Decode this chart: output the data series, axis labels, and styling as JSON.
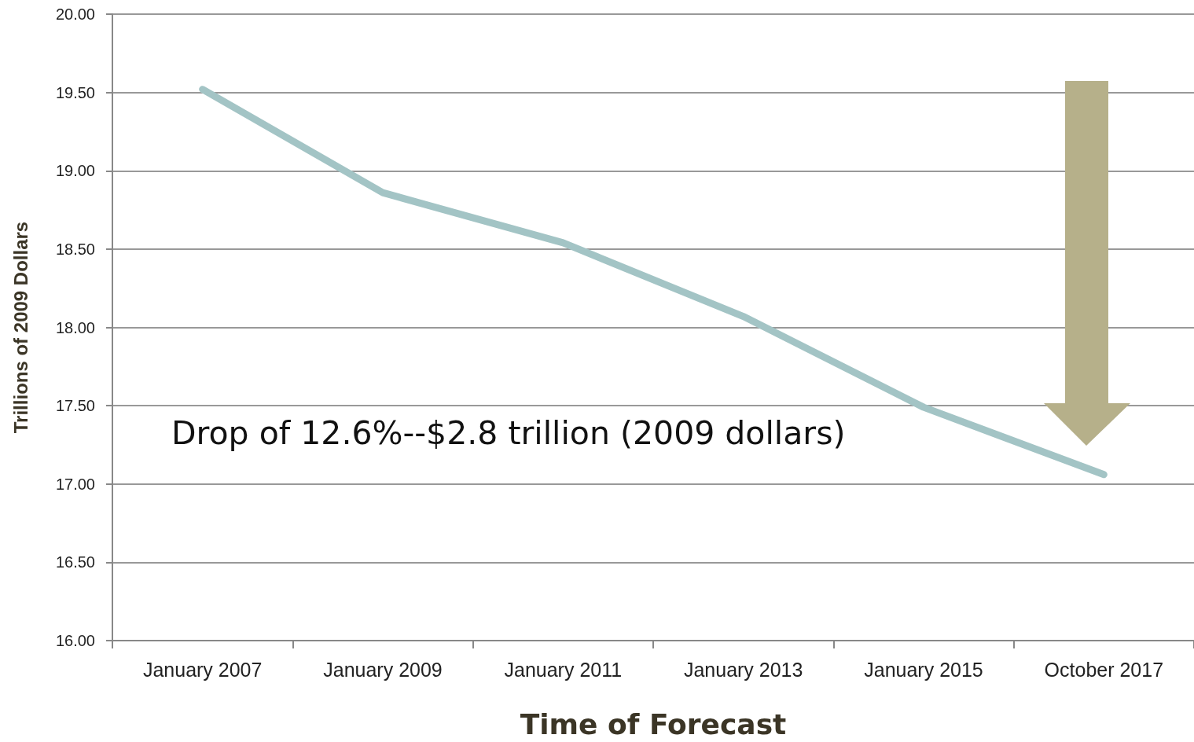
{
  "chart_data": {
    "type": "line",
    "xlabel": "Time of Forecast",
    "ylabel": "Trillions of 2009 Dollars",
    "categories": [
      "January 2007",
      "January 2009",
      "January 2011",
      "January 2013",
      "January 2015",
      "October 2017"
    ],
    "series": [
      {
        "color": "#a3c4c5",
        "values": [
          19.52,
          18.86,
          18.54,
          18.07,
          17.49,
          17.06
        ]
      }
    ],
    "ylim": [
      16,
      20
    ],
    "yticks": [
      {
        "value": 16,
        "label": "16.00"
      },
      {
        "value": 16.5,
        "label": "16.50"
      },
      {
        "value": 17,
        "label": "17.00"
      },
      {
        "value": 17.5,
        "label": "17.50"
      },
      {
        "value": 18,
        "label": "18.00"
      },
      {
        "value": 18.5,
        "label": "18.50"
      },
      {
        "value": 19,
        "label": "19.00"
      },
      {
        "value": 19.5,
        "label": "19.50"
      },
      {
        "value": 20,
        "label": "20.00"
      }
    ],
    "grid": "y",
    "line_style": "solid",
    "annotations": [
      "Drop of 12.6%--$2.8 trillion (2009 dollars)"
    ]
  }
}
